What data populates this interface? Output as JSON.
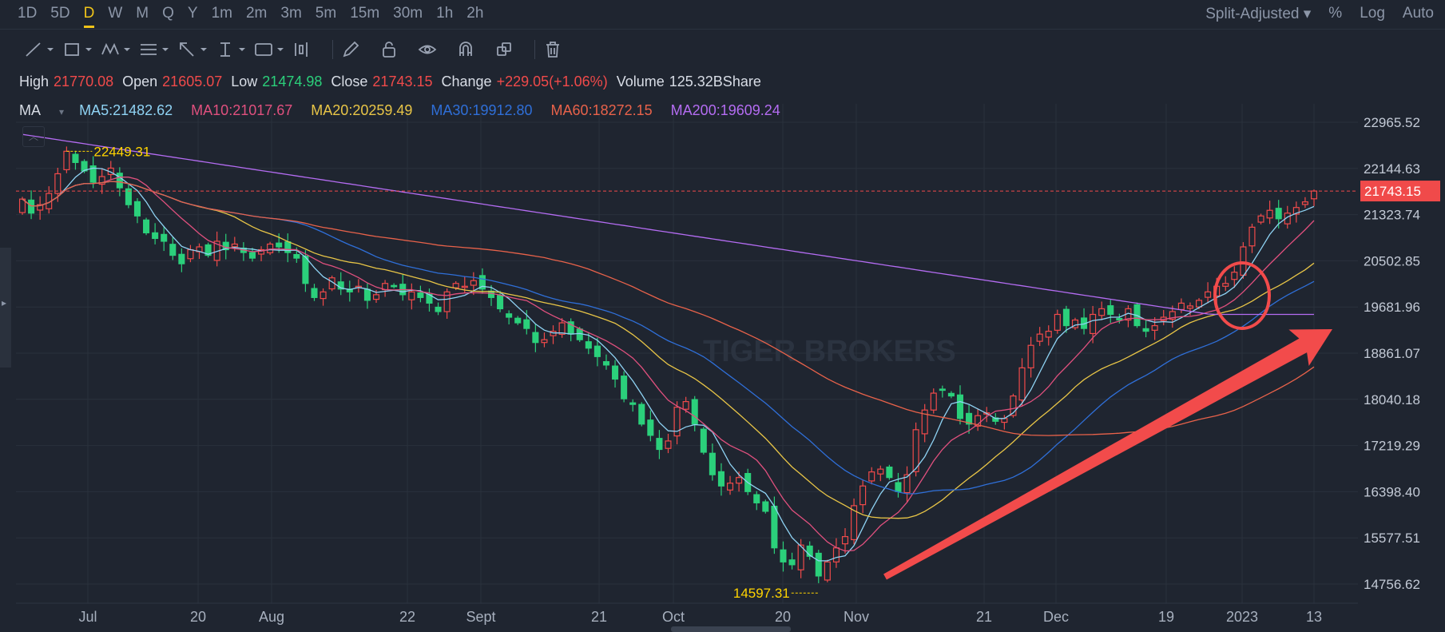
{
  "intervals": [
    "1D",
    "5D",
    "D",
    "W",
    "M",
    "Q",
    "Y",
    "1m",
    "2m",
    "3m",
    "5m",
    "15m",
    "30m",
    "1h",
    "2h"
  ],
  "active_interval": "D",
  "right_options": {
    "adjust": "Split-Adjusted",
    "percent": "%",
    "log": "Log",
    "auto": "Auto"
  },
  "ohlc": {
    "high_label": "High",
    "high": "21770.08",
    "open_label": "Open",
    "open": "21605.07",
    "low_label": "Low",
    "low": "21474.98",
    "close_label": "Close",
    "close": "21743.15",
    "change_label": "Change",
    "change": "+229.05(+1.06%)",
    "volume_label": "Volume",
    "volume": "125.32BShare"
  },
  "ma_legend": {
    "label": "MA",
    "ma5": "MA5:21482.62",
    "ma10": "MA10:21017.67",
    "ma20": "MA20:20259.49",
    "ma30": "MA30:19912.80",
    "ma60": "MA60:18272.15",
    "ma200": "MA200:19609.24"
  },
  "colors": {
    "up": "#f04a4a",
    "down": "#2bd07b",
    "ma5": "#8fd3f4",
    "ma10": "#e0507e",
    "ma20": "#e8c547",
    "ma30": "#2f6fd8",
    "ma60": "#e8624a",
    "ma200": "#b46cf2",
    "annotation": "#f24b4b",
    "highlight_label": "#ffd400"
  },
  "chart_data": {
    "type": "candlestick",
    "y_ticks": [
      22965.52,
      22144.63,
      21323.74,
      20502.85,
      19681.96,
      18861.07,
      18040.18,
      17219.29,
      16398.4,
      15577.51,
      14756.62
    ],
    "y_tick_labels": [
      "22965.52",
      "22144.63",
      "21323.74",
      "20502.85",
      "19681.96",
      "18861.07",
      "18040.18",
      "17219.29",
      "16398.40",
      "15577.51",
      "14756.62"
    ],
    "x_labels": [
      "Jul",
      "20",
      "Aug",
      "22",
      "Sept",
      "21",
      "Oct",
      "20",
      "Nov",
      "21",
      "Dec",
      "19",
      "2023",
      "13"
    ],
    "last_price": 21743.15,
    "last_price_label": "21743.15",
    "max_marker": {
      "value": 22449.31,
      "label": "22449.31"
    },
    "min_marker": {
      "value": 14597.31,
      "label": "14597.31"
    },
    "closes": [
      21600,
      21350,
      21500,
      21700,
      22050,
      22450,
      22250,
      22100,
      21900,
      22000,
      22150,
      21800,
      21500,
      21300,
      21000,
      20900,
      20850,
      20600,
      20450,
      20700,
      20750,
      20600,
      20850,
      20700,
      20800,
      20650,
      20550,
      20700,
      20800,
      20750,
      20650,
      20550,
      20100,
      19850,
      19950,
      20200,
      20000,
      19950,
      20050,
      19800,
      19900,
      20100,
      20050,
      19900,
      19950,
      19850,
      19750,
      19600,
      19950,
      20100,
      20050,
      20150,
      20000,
      19850,
      19650,
      19500,
      19400,
      19300,
      19050,
      19100,
      19250,
      19400,
      19200,
      19100,
      18950,
      18800,
      18650,
      18400,
      18050,
      17950,
      17600,
      17400,
      17150,
      17300,
      17900,
      18000,
      17600,
      17100,
      16700,
      16500,
      16550,
      16650,
      16400,
      16200,
      16050,
      15400,
      15150,
      15100,
      15450,
      15250,
      14900,
      15150,
      15400,
      15600,
      16150,
      16500,
      16750,
      16800,
      16650,
      16400,
      16700,
      17500,
      17850,
      18150,
      18200,
      18100,
      17700,
      17600,
      17750,
      17800,
      17650,
      17700,
      18100,
      18600,
      19000,
      19200,
      19250,
      19550,
      19350,
      19450,
      19300,
      19550,
      19650,
      19550,
      19450,
      19650,
      19350,
      19250,
      19350,
      19500,
      19600,
      19750,
      19700,
      19800,
      19950,
      20050,
      20100,
      20300,
      20750,
      21100,
      21300,
      21400,
      21250,
      21350,
      21450,
      21550,
      21743.15
    ],
    "annotations": [
      {
        "type": "arrow",
        "from": [
          "Nov",
          15100
        ],
        "to": [
          "13",
          19500
        ]
      },
      {
        "type": "circle",
        "at": [
          "2023",
          19750
        ]
      }
    ],
    "watermark": "TIGER BROKERS",
    "grid": true
  }
}
